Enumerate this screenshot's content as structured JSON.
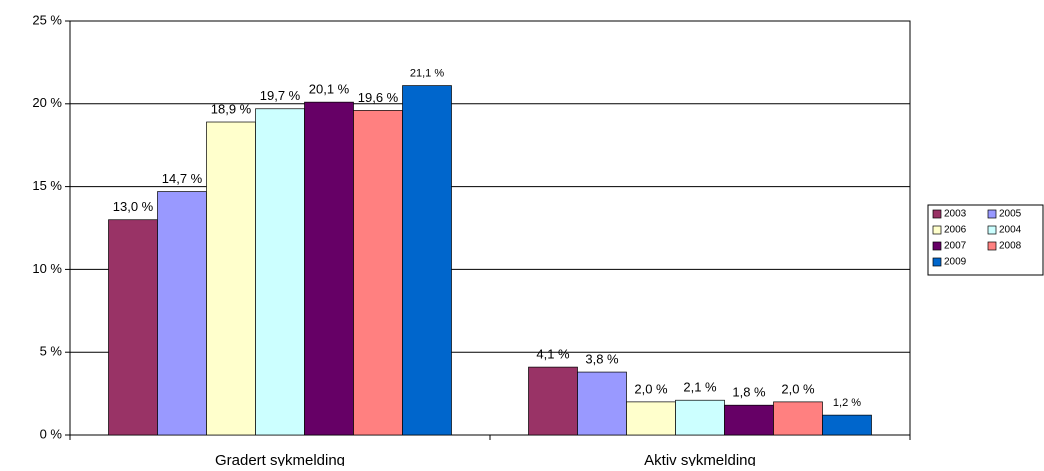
{
  "chart_data": {
    "type": "bar",
    "categories": [
      "Gradert sykmelding",
      "Aktiv sykmelding"
    ],
    "series": [
      {
        "name": "2003",
        "color": "#993366",
        "values": [
          13.0,
          4.1
        ],
        "value_labels": [
          "13,0 %",
          "4,1 %"
        ]
      },
      {
        "name": "2005",
        "color": "#9999ff",
        "values": [
          14.7,
          3.8
        ],
        "value_labels": [
          "14,7 %",
          "3,8 %"
        ]
      },
      {
        "name": "2006",
        "color": "#ffffcc",
        "values": [
          18.9,
          2.0
        ],
        "value_labels": [
          "18,9 %",
          "2,0 %"
        ]
      },
      {
        "name": "2004",
        "color": "#ccffff",
        "values": [
          19.7,
          2.1
        ],
        "value_labels": [
          "19,7 %",
          "2,1 %"
        ]
      },
      {
        "name": "2007",
        "color": "#660066",
        "values": [
          20.1,
          1.8
        ],
        "value_labels": [
          "20,1 %",
          "1,8 %"
        ]
      },
      {
        "name": "2008",
        "color": "#ff8080",
        "values": [
          19.6,
          2.0
        ],
        "value_labels": [
          "19,6 %",
          "2,0 %"
        ]
      },
      {
        "name": "2009",
        "color": "#0066cc",
        "values": [
          21.1,
          1.2
        ],
        "value_labels": [
          "21,1 %",
          "1,2 %"
        ]
      }
    ],
    "ylim": [
      0,
      25
    ],
    "yticks": [
      {
        "value": 0,
        "label": "0 %"
      },
      {
        "value": 5,
        "label": "5 %"
      },
      {
        "value": 10,
        "label": "10 %"
      },
      {
        "value": 15,
        "label": "15 %"
      },
      {
        "value": 20,
        "label": "20 %"
      },
      {
        "value": 25,
        "label": "25 %"
      }
    ],
    "grid": true,
    "legend": "right"
  }
}
